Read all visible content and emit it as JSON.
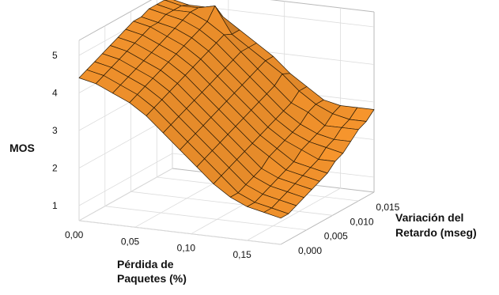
{
  "chart_data": {
    "type": "surface",
    "title": "",
    "xlabel_lines": [
      "Pérdida de",
      "Paquetes (%)"
    ],
    "ylabel_lines": [
      "Variación del",
      "Retardo (mseg)"
    ],
    "zlabel": "MOS",
    "x_ticks": [
      "0,00",
      "0,05",
      "0,10",
      "0,15"
    ],
    "y_ticks": [
      "0,000",
      "0,005",
      "0,010",
      "0,015"
    ],
    "z_ticks": [
      "1",
      "2",
      "3",
      "4",
      "5"
    ],
    "x_range": [
      0,
      0.18
    ],
    "y_range": [
      0,
      0.018
    ],
    "z_range": [
      0.6,
      5.4
    ],
    "surface_color": "#f2922c",
    "x_values": [
      0.0,
      0.015,
      0.03,
      0.045,
      0.06,
      0.075,
      0.09,
      0.105,
      0.12,
      0.135,
      0.15,
      0.165,
      0.18
    ],
    "y_values": [
      0.0,
      0.0015,
      0.003,
      0.0045,
      0.006,
      0.0075,
      0.009,
      0.0105,
      0.012,
      0.0135,
      0.015,
      0.0165,
      0.018
    ],
    "z_values": [
      [
        4.4,
        4.5,
        4.6,
        4.7,
        4.8,
        4.9,
        5.0,
        5.1,
        5.1,
        5.2,
        5.2,
        5.2,
        5.1
      ],
      [
        4.3,
        4.4,
        4.5,
        4.6,
        4.7,
        4.8,
        4.9,
        5.0,
        5.0,
        5.1,
        5.1,
        5.1,
        5.0
      ],
      [
        4.1,
        4.2,
        4.3,
        4.4,
        4.5,
        4.6,
        4.7,
        4.8,
        4.9,
        5.0,
        5.1,
        5.1,
        5.0
      ],
      [
        3.9,
        4.0,
        4.1,
        4.2,
        4.3,
        4.4,
        4.5,
        4.6,
        4.7,
        4.8,
        4.9,
        5.2,
        4.8
      ],
      [
        3.6,
        3.7,
        3.8,
        3.9,
        4.0,
        4.1,
        4.2,
        4.3,
        4.4,
        4.5,
        4.6,
        4.5,
        4.5
      ],
      [
        3.2,
        3.3,
        3.4,
        3.5,
        3.6,
        3.7,
        3.8,
        3.9,
        4.0,
        4.1,
        4.2,
        4.2,
        4.2
      ],
      [
        2.8,
        2.9,
        3.0,
        3.1,
        3.2,
        3.3,
        3.4,
        3.5,
        3.6,
        3.7,
        3.8,
        3.9,
        3.9
      ],
      [
        2.4,
        2.5,
        2.6,
        2.7,
        2.8,
        2.9,
        3.0,
        3.1,
        3.2,
        3.3,
        3.4,
        3.6,
        3.5
      ],
      [
        2.0,
        2.1,
        2.2,
        2.3,
        2.4,
        2.5,
        2.6,
        2.7,
        2.8,
        2.9,
        3.0,
        3.2,
        3.2
      ],
      [
        1.7,
        1.7,
        1.8,
        1.9,
        2.0,
        2.2,
        2.3,
        2.4,
        2.5,
        2.6,
        2.8,
        2.9,
        2.9
      ],
      [
        1.5,
        1.5,
        1.6,
        1.7,
        1.8,
        1.9,
        2.0,
        2.2,
        2.3,
        2.4,
        2.5,
        2.7,
        2.8
      ],
      [
        1.4,
        1.4,
        1.5,
        1.6,
        1.7,
        1.8,
        1.9,
        2.0,
        2.2,
        2.3,
        2.5,
        2.6,
        2.8
      ],
      [
        1.3,
        1.3,
        1.4,
        1.5,
        1.6,
        1.7,
        1.8,
        2.0,
        2.1,
        2.3,
        2.5,
        2.6,
        2.8
      ]
    ]
  }
}
